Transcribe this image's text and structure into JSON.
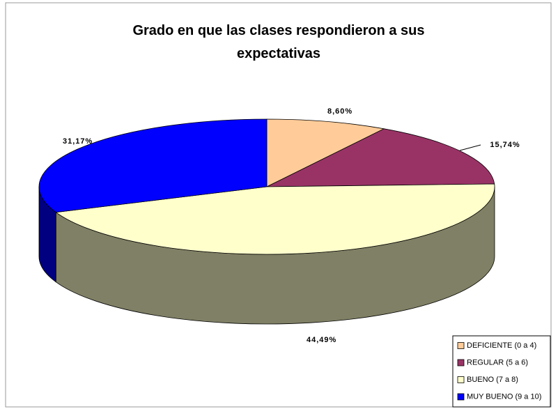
{
  "chart_data": {
    "type": "pie",
    "title": "Grado en que las clases respondieron a sus expectativas",
    "categories": [
      "DEFICIENTE (0 a 4)",
      "REGULAR (5 a 6)",
      "BUENO (7 a 8)",
      "MUY BUENO (9 a 10)"
    ],
    "values": [
      8.6,
      15.74,
      44.49,
      31.17
    ],
    "value_labels": [
      "8,60%",
      "15,74%",
      "44,49%",
      "31,17%"
    ],
    "colors": [
      "#FFCC99",
      "#993366",
      "#FFFFCC",
      "#0000FF"
    ],
    "legend": "bottom-right"
  }
}
